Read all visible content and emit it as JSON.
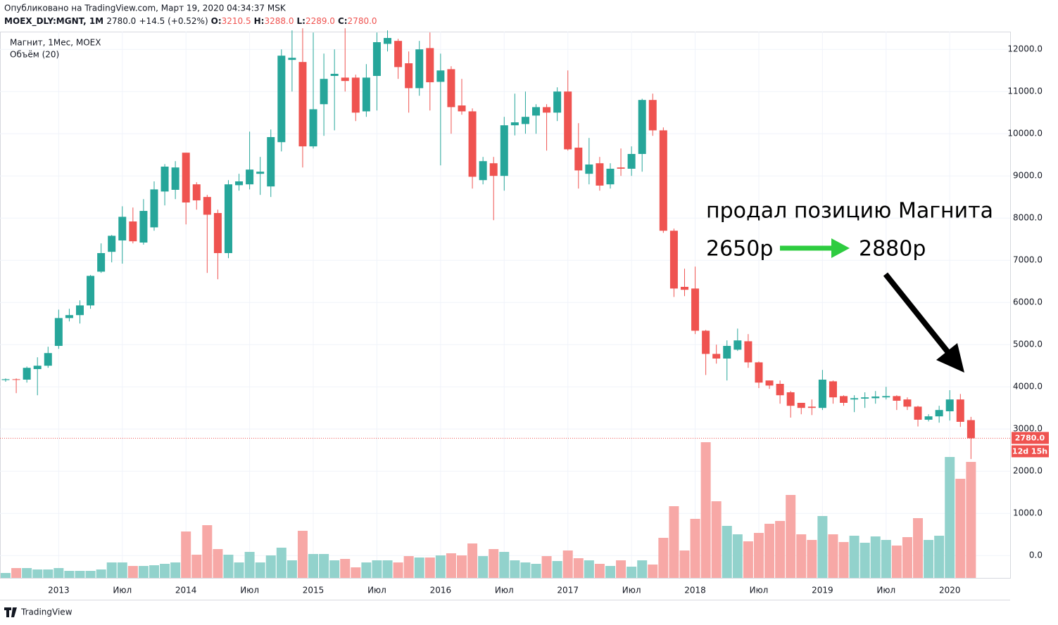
{
  "header": {
    "published": "Опубликовано на TradingView.com, Март 19, 2020 04:34:37 MSK",
    "symbol": "MOEX_DLY:MGNT, 1M",
    "price": "2780.0",
    "change": "+14.5 (+0.52%)",
    "ohlc": [
      {
        "label": "O:",
        "value": "3210.5"
      },
      {
        "label": "H:",
        "value": "3288.0"
      },
      {
        "label": "L:",
        "value": "2289.0"
      },
      {
        "label": "C:",
        "value": "2780.0"
      }
    ]
  },
  "footer": "TradingView",
  "chart_data": {
    "type": "candlestick",
    "title": "Магнит, 1Мес, MOEX",
    "volume_label": "Объём (20)",
    "categories": [
      null,
      null,
      null,
      null,
      null,
      "2013",
      null,
      null,
      null,
      null,
      null,
      "Июл",
      null,
      null,
      null,
      null,
      null,
      "2014",
      null,
      null,
      null,
      null,
      null,
      "Июл",
      null,
      null,
      null,
      null,
      null,
      "2015",
      null,
      null,
      null,
      null,
      null,
      "Июл",
      null,
      null,
      null,
      null,
      null,
      "2016",
      null,
      null,
      null,
      null,
      null,
      "Июл",
      null,
      null,
      null,
      null,
      null,
      "2017",
      null,
      null,
      null,
      null,
      null,
      "Июл",
      null,
      null,
      null,
      null,
      null,
      "2018",
      null,
      null,
      null,
      null,
      null,
      "Июл",
      null,
      null,
      null,
      null,
      null,
      "2019",
      null,
      null,
      null,
      null,
      null,
      "Июл",
      null,
      null,
      null,
      null,
      null,
      "2020",
      null,
      null
    ],
    "open": [
      4160,
      4180,
      4170,
      4420,
      4500,
      4970,
      5630,
      5700,
      5930,
      6730,
      7200,
      7470,
      7920,
      7420,
      7780,
      8630,
      8670,
      9550,
      8800,
      8500,
      8120,
      7170,
      8780,
      8800,
      9050,
      8750,
      9800,
      11750,
      11700,
      9700,
      10700,
      11370,
      11330,
      11330,
      10530,
      11370,
      12130,
      12200,
      11670,
      11080,
      12030,
      11230,
      11530,
      10670,
      10530,
      8900,
      9300,
      9000,
      10200,
      10230,
      10430,
      10630,
      10500,
      11000,
      9670,
      9050,
      9300,
      8800,
      9200,
      9170,
      9520,
      10800,
      10080,
      7700,
      6370,
      6330,
      5330,
      4780,
      4670,
      4880,
      5080,
      4580,
      4150,
      4070,
      3870,
      3620,
      3530,
      3500,
      4130,
      3780,
      3700,
      3720,
      3730,
      3750,
      3780,
      3700,
      3530,
      3220,
      3300,
      3420,
      3700,
      3210.5
    ],
    "high": [
      4200,
      4200,
      4480,
      4700,
      4950,
      5830,
      5850,
      6050,
      6650,
      7400,
      7600,
      8280,
      8250,
      8450,
      8870,
      9280,
      9350,
      9550,
      8850,
      8550,
      8200,
      8900,
      9050,
      10050,
      9450,
      10100,
      12000,
      12450,
      12500,
      12400,
      11900,
      12000,
      12500,
      11400,
      11650,
      12400,
      12450,
      12250,
      11950,
      12200,
      12400,
      11900,
      11600,
      11300,
      10600,
      9450,
      9450,
      10400,
      10950,
      11000,
      10700,
      10700,
      11100,
      11500,
      10250,
      9900,
      9450,
      9300,
      9650,
      9700,
      10830,
      10950,
      10150,
      7750,
      6800,
      6850,
      5350,
      5000,
      5100,
      5380,
      5250,
      4600,
      4150,
      4150,
      3900,
      3620,
      3700,
      4400,
      4150,
      3800,
      3800,
      3870,
      3900,
      4000,
      3800,
      3750,
      3550,
      3350,
      3550,
      3920,
      3830,
      3288
    ],
    "low": [
      4120,
      3850,
      4100,
      3800,
      4450,
      4900,
      5550,
      5500,
      5850,
      6700,
      6950,
      6920,
      7400,
      7370,
      7700,
      8300,
      8450,
      7850,
      8200,
      6700,
      6550,
      7050,
      8650,
      8680,
      8550,
      8500,
      9580,
      11000,
      9200,
      9650,
      9950,
      10080,
      11000,
      10300,
      10400,
      10550,
      11950,
      11300,
      10500,
      10900,
      10550,
      9250,
      10000,
      10450,
      8700,
      8800,
      7950,
      8650,
      9960,
      10000,
      10000,
      9600,
      10300,
      9600,
      8700,
      8800,
      8650,
      8700,
      9000,
      9000,
      9100,
      9950,
      7650,
      6130,
      6150,
      5250,
      4280,
      4550,
      4150,
      4850,
      4450,
      3970,
      3950,
      3600,
      3270,
      3350,
      3330,
      3450,
      3600,
      3550,
      3400,
      3500,
      3600,
      3700,
      3450,
      3450,
      3060,
      3180,
      3150,
      3200,
      3050,
      2289
    ],
    "close": [
      4180,
      4170,
      4450,
      4500,
      4800,
      5630,
      5700,
      5930,
      6630,
      7170,
      7580,
      8030,
      7450,
      8170,
      8680,
      9220,
      9200,
      8370,
      8420,
      8080,
      7170,
      8800,
      8870,
      9150,
      9100,
      9920,
      11850,
      11800,
      9700,
      10580,
      11300,
      11420,
      11250,
      10500,
      11330,
      12170,
      12270,
      11580,
      11080,
      12000,
      11220,
      11500,
      10630,
      10530,
      8980,
      9350,
      9000,
      10200,
      10270,
      10400,
      10630,
      10500,
      11000,
      9630,
      9130,
      9270,
      8770,
      9170,
      9170,
      9520,
      10800,
      10080,
      7700,
      6330,
      6300,
      5330,
      4780,
      4670,
      4970,
      5100,
      4580,
      4100,
      4030,
      3800,
      3550,
      3500,
      3500,
      4170,
      3750,
      3620,
      3730,
      3750,
      3770,
      3780,
      3670,
      3530,
      3220,
      3300,
      3450,
      3700,
      3170,
      2780
    ],
    "volume": [
      3.5,
      7,
      7,
      6,
      6,
      7,
      5,
      5,
      5,
      6,
      11,
      11,
      8.5,
      8.5,
      9,
      10,
      11,
      33,
      16.5,
      37.5,
      20.5,
      16.5,
      11,
      18.5,
      11,
      16,
      21.5,
      12.5,
      33.5,
      17,
      17,
      12.5,
      13.5,
      7.5,
      11,
      12.5,
      12.5,
      11,
      15.5,
      14.5,
      14.5,
      16,
      17.5,
      16,
      24.5,
      15.5,
      20.5,
      18.5,
      12.5,
      11,
      10,
      15.5,
      12,
      19.5,
      14,
      12.5,
      10,
      8.5,
      12.5,
      8,
      12.5,
      9.5,
      28.5,
      51,
      19.5,
      42,
      96.5,
      54.5,
      37,
      31,
      26,
      32,
      38.5,
      40.5,
      59,
      31,
      27,
      44,
      31,
      25.5,
      30,
      25,
      29.5,
      27,
      23,
      29,
      42.5,
      27,
      30,
      86,
      70.5,
      82.5
    ],
    "vlim": [
      0,
      100
    ],
    "up_color": "#26a69a",
    "down_color": "#ef5350",
    "up_volume_color": "#92d2cc",
    "down_volume_color": "#f7a8a6",
    "ylim": [
      -530,
      12420
    ],
    "yticks": [
      {
        "value": 0,
        "label": "0.0"
      },
      {
        "value": 1000,
        "label": "1000.0"
      },
      {
        "value": 2000,
        "label": "2000.0"
      },
      {
        "value": 3000,
        "label": "3000.0"
      },
      {
        "value": 4000,
        "label": "4000.0"
      },
      {
        "value": 5000,
        "label": "5000.0"
      },
      {
        "value": 6000,
        "label": "6000.0"
      },
      {
        "value": 7000,
        "label": "7000.0"
      },
      {
        "value": 8000,
        "label": "8000.0"
      },
      {
        "value": 9000,
        "label": "9000.0"
      },
      {
        "value": 10000,
        "label": "10000.0"
      },
      {
        "value": 11000,
        "label": "11000.0"
      },
      {
        "value": 12000,
        "label": "12000.0"
      }
    ],
    "grid": true,
    "last_price": {
      "value": 2780,
      "label": "2780.0"
    },
    "timer": "12d 15h",
    "annotations": [
      "продал позицию Магнита",
      "2650р",
      "2880р"
    ]
  }
}
